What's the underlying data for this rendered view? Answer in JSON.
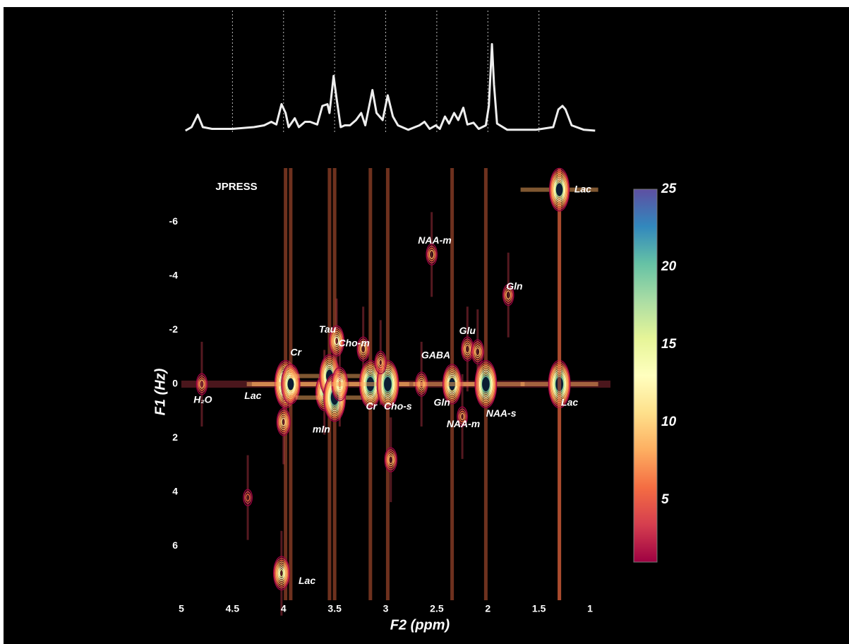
{
  "chart_data": [
    {
      "type": "line",
      "color": "#eeeeee",
      "x": [
        4.96,
        4.9,
        4.84,
        4.79,
        4.7,
        4.5,
        4.29,
        4.19,
        4.12,
        4.07,
        4.02,
        3.98,
        3.95,
        3.89,
        3.85,
        3.79,
        3.74,
        3.67,
        3.62,
        3.57,
        3.55,
        3.51,
        3.48,
        3.44,
        3.4,
        3.35,
        3.29,
        3.24,
        3.2,
        3.13,
        3.09,
        3.03,
        2.98,
        2.93,
        2.88,
        2.78,
        2.67,
        2.62,
        2.57,
        2.51,
        2.47,
        2.42,
        2.38,
        2.33,
        2.29,
        2.24,
        2.2,
        2.14,
        2.09,
        2.02,
        1.99,
        1.96,
        1.94,
        1.91,
        1.81,
        1.53,
        1.36,
        1.31,
        1.27,
        1.24,
        1.18,
        1.06,
        0.95
      ],
      "values": [
        0,
        4,
        18,
        4,
        2,
        2,
        4,
        6,
        10,
        7,
        30,
        20,
        4,
        14,
        4,
        10,
        10,
        7,
        28,
        30,
        20,
        62,
        36,
        4,
        6,
        6,
        12,
        20,
        6,
        46,
        20,
        12,
        40,
        16,
        6,
        1,
        6,
        10,
        2,
        6,
        2,
        16,
        8,
        20,
        12,
        26,
        7,
        9,
        2,
        6,
        28,
        98,
        52,
        8,
        1,
        1,
        4,
        24,
        28,
        24,
        6,
        1,
        0
      ],
      "xlim": [
        5,
        0.8
      ],
      "ylim": [
        0,
        100
      ],
      "vlines": [
        4.5,
        4,
        3.5,
        3,
        2.5,
        2,
        1.5
      ]
    },
    {
      "type": "contour",
      "title": "JPRESS",
      "x_label": "F2 (ppm)",
      "y_label": "F1 (Hz)",
      "xlim": [
        5,
        0.8
      ],
      "ylim": [
        8,
        -8
      ],
      "xticks": [
        5,
        4.5,
        4,
        3.5,
        3,
        2.5,
        2,
        1.5,
        1
      ],
      "yticks": [
        -6,
        -4,
        -2,
        0,
        2,
        4,
        6
      ],
      "peaks": {
        "x": [
          4.8,
          3.98,
          3.93,
          4.0,
          3.6,
          3.55,
          3.5,
          3.48,
          3.45,
          3.22,
          3.15,
          2.98,
          2.95,
          2.65,
          2.55,
          2.35,
          2.2,
          1.8,
          2.02,
          2.1,
          1.3,
          1.3,
          4.02,
          4.35,
          3.05,
          2.25
        ],
        "y": [
          0,
          0,
          0,
          1.4,
          0.3,
          -0.3,
          0.5,
          -1.6,
          0,
          -1.3,
          0,
          0,
          2.8,
          0,
          -4.8,
          0,
          -1.3,
          -3.3,
          0,
          -1.2,
          0,
          -7.2,
          7,
          4.2,
          -0.8,
          1.2
        ],
        "values": [
          8,
          25,
          20,
          12,
          18,
          22,
          25,
          14,
          16,
          10,
          25,
          25,
          10,
          10,
          8,
          20,
          10,
          8,
          25,
          10,
          25,
          22,
          16,
          5,
          9,
          7
        ]
      },
      "annotations": [
        {
          "text": "Lac",
          "x": 1.07,
          "y": -7.2
        },
        {
          "text": "NAA-m",
          "x": 2.52,
          "y": -5.3
        },
        {
          "text": "Gln",
          "x": 1.74,
          "y": -3.6
        },
        {
          "text": "Glu",
          "x": 2.2,
          "y": -1.95
        },
        {
          "text": "Tau",
          "x": 3.57,
          "y": -2.0
        },
        {
          "text": "Cho-m",
          "x": 3.31,
          "y": -1.5
        },
        {
          "text": "Cr",
          "x": 3.88,
          "y": -1.15
        },
        {
          "text": "GABA",
          "x": 2.51,
          "y": -1.05
        },
        {
          "text": "H₂O",
          "x": 4.79,
          "y": 0.6
        },
        {
          "text": "Lac",
          "x": 4.3,
          "y": 0.45
        },
        {
          "text": "Cr",
          "x": 3.14,
          "y": 0.85
        },
        {
          "text": "Cho-s",
          "x": 2.88,
          "y": 0.85
        },
        {
          "text": "Gln",
          "x": 2.45,
          "y": 0.7
        },
        {
          "text": "NAA-s",
          "x": 1.87,
          "y": 1.1
        },
        {
          "text": "NAA-m",
          "x": 2.24,
          "y": 1.5
        },
        {
          "text": "Lac",
          "x": 1.2,
          "y": 0.7
        },
        {
          "text": "mIn",
          "x": 3.63,
          "y": 1.7
        },
        {
          "text": "Lac",
          "x": 3.77,
          "y": 7.3
        }
      ],
      "colorbar": {
        "lim": [
          1,
          25
        ],
        "ticks": [
          5,
          10,
          15,
          20,
          25
        ],
        "colormap": [
          "#9e0142",
          "#d53e4f",
          "#f46d43",
          "#fdae61",
          "#fee08b",
          "#ffffbf",
          "#e6f598",
          "#abdda4",
          "#66c2a5",
          "#3288bd",
          "#5e4fa2"
        ]
      }
    }
  ]
}
